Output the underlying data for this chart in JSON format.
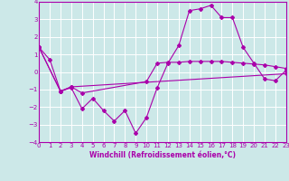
{
  "bg_color": "#cce8e8",
  "grid_color": "#ffffff",
  "line_color": "#aa00aa",
  "xlabel": "Windchill (Refroidissement éolien,°C)",
  "ylim": [
    -4,
    4
  ],
  "xlim": [
    0,
    23
  ],
  "yticks": [
    -4,
    -3,
    -2,
    -1,
    0,
    1,
    2,
    3,
    4
  ],
  "xticks": [
    0,
    1,
    2,
    3,
    4,
    5,
    6,
    7,
    8,
    9,
    10,
    11,
    12,
    13,
    14,
    15,
    16,
    17,
    18,
    19,
    20,
    21,
    22,
    23
  ],
  "series1_x": [
    0,
    1,
    2,
    3,
    4,
    5,
    6,
    7,
    8,
    9,
    10,
    11,
    12,
    13,
    14,
    15,
    16,
    17,
    18,
    19,
    20,
    21,
    22,
    23
  ],
  "series1_y": [
    1.4,
    0.7,
    -1.1,
    -0.9,
    -2.1,
    -1.5,
    -2.2,
    -2.8,
    -2.2,
    -3.5,
    -2.6,
    -0.9,
    0.5,
    1.5,
    3.5,
    3.6,
    3.8,
    3.1,
    3.1,
    1.4,
    0.5,
    -0.4,
    -0.5,
    0.1
  ],
  "series2_x": [
    0,
    2,
    3,
    4,
    10,
    11,
    12,
    13,
    14,
    15,
    16,
    17,
    18,
    19,
    20,
    21,
    22,
    23
  ],
  "series2_y": [
    1.4,
    -1.1,
    -0.85,
    -1.2,
    -0.55,
    0.5,
    0.55,
    0.55,
    0.6,
    0.6,
    0.6,
    0.6,
    0.55,
    0.5,
    0.45,
    0.4,
    0.3,
    0.2
  ],
  "series3_x": [
    0,
    2,
    3,
    23
  ],
  "series3_y": [
    1.4,
    -1.1,
    -0.85,
    -0.1
  ]
}
